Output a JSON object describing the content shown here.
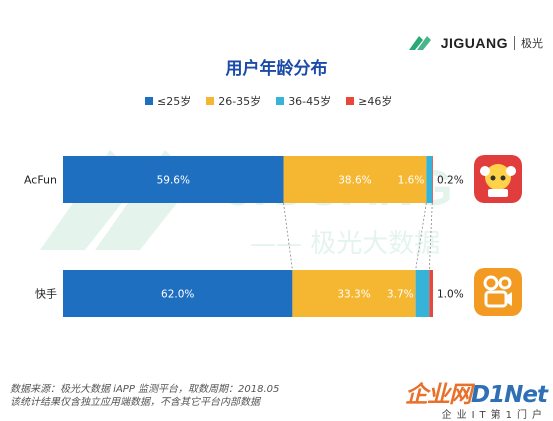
{
  "brand": {
    "name": "JIGUANG",
    "cn": "极光"
  },
  "footer": {
    "source_line1": "数据来源：极光大数据 iAPP 监测平台，取数周期：2018.05",
    "source_line2": "该统计结果仅含独立应用端数据，不含其它平台内部数据",
    "site_name_a": "企业网",
    "site_name_b": "D1Net",
    "site_sub": "企业IT第1门户"
  },
  "watermark": {
    "en": "JIGUANG",
    "cn": "—— 极光大数据"
  },
  "apps": [
    {
      "name": "AcFun",
      "icon": "acfun-icon",
      "color": "#e23d3d"
    },
    {
      "name": "快手",
      "icon": "kuaishou-icon",
      "color": "#f29a21"
    }
  ],
  "chart_data": {
    "type": "bar",
    "orientation": "horizontal",
    "stacked": true,
    "title": "用户年龄分布",
    "categories": [
      "AcFun",
      "快手"
    ],
    "series": [
      {
        "name": "≤25岁",
        "color": "#1f6fc1",
        "values": [
          59.6,
          62.0
        ],
        "labels": [
          "59.6%",
          "62.0%"
        ]
      },
      {
        "name": "26-35岁",
        "color": "#f5b731",
        "values": [
          38.6,
          33.3
        ],
        "labels": [
          "38.6%",
          "33.3%"
        ]
      },
      {
        "name": "36-45岁",
        "color": "#36b3d9",
        "values": [
          1.6,
          3.7
        ],
        "labels": [
          "1.6%",
          "3.7%"
        ]
      },
      {
        "name": "≥46岁",
        "color": "#e8483a",
        "values": [
          0.2,
          1.0
        ],
        "labels": [
          "0.2%",
          "1.0%"
        ]
      }
    ],
    "xlim": [
      0,
      100
    ],
    "legend": "top",
    "grid": false
  }
}
